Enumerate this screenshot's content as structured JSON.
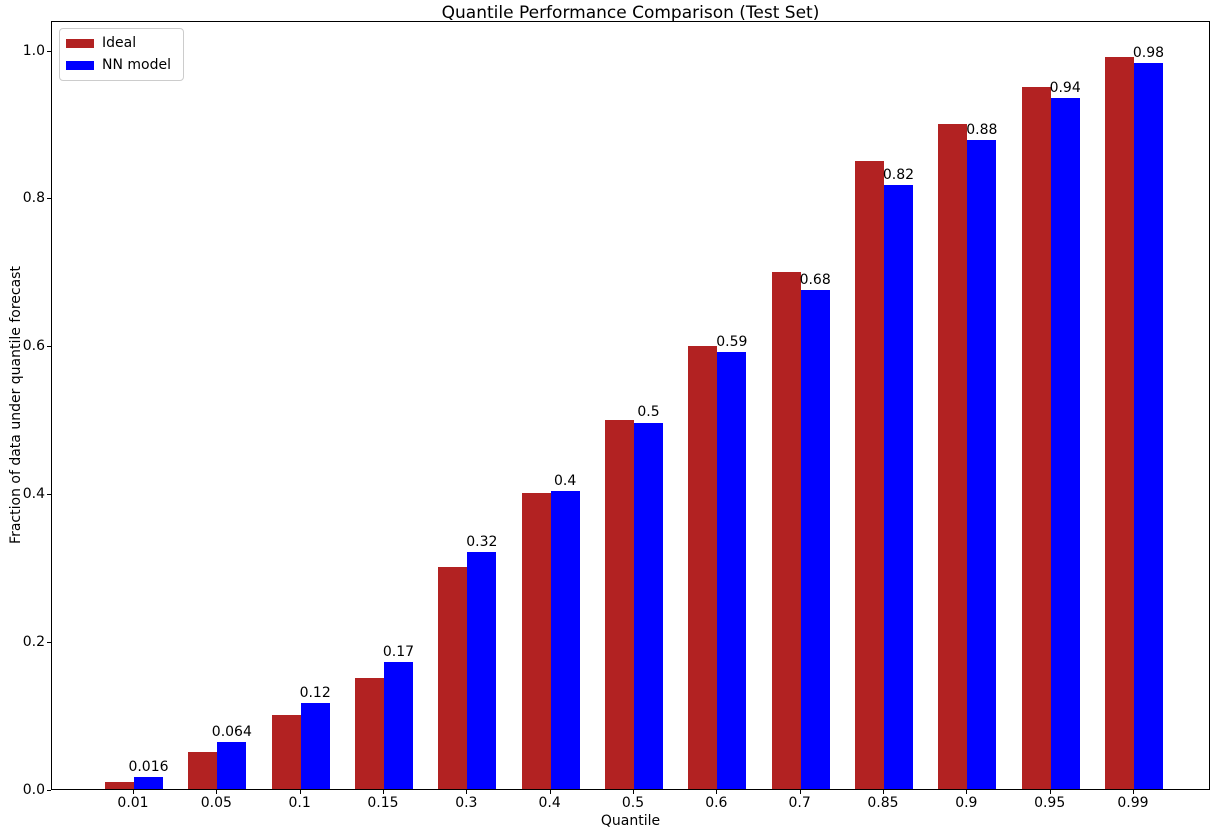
{
  "chart_data": {
    "type": "bar",
    "title": "Quantile Performance Comparison (Test Set)",
    "xlabel": "Quantile",
    "ylabel": "Fraction of data under quantile forecast",
    "categories": [
      "0.01",
      "0.05",
      "0.1",
      "0.15",
      "0.3",
      "0.4",
      "0.5",
      "0.6",
      "0.7",
      "0.85",
      "0.9",
      "0.95",
      "0.99"
    ],
    "series": [
      {
        "name": "Ideal",
        "color": "#b22222",
        "values": [
          0.01,
          0.05,
          0.1,
          0.15,
          0.3,
          0.4,
          0.5,
          0.6,
          0.7,
          0.85,
          0.9,
          0.95,
          0.99
        ]
      },
      {
        "name": "NN model",
        "color": "#0000ff",
        "values": [
          0.016,
          0.064,
          0.117,
          0.172,
          0.321,
          0.403,
          0.496,
          0.592,
          0.675,
          0.818,
          0.878,
          0.935,
          0.983
        ],
        "bar_labels": [
          "0.016",
          "0.064",
          "0.12",
          "0.17",
          "0.32",
          "0.4",
          "0.5",
          "0.59",
          "0.68",
          "0.82",
          "0.88",
          "0.94",
          "0.98"
        ]
      }
    ],
    "ylim": [
      0,
      1.0406
    ],
    "yticks": [
      0.0,
      0.2,
      0.4,
      0.6,
      0.8,
      1.0
    ],
    "ytick_labels": [
      "0.0",
      "0.2",
      "0.4",
      "0.6",
      "0.8",
      "1.0"
    ],
    "legend_position": "upper left",
    "grid": false,
    "bar_label_series": "NN model"
  }
}
